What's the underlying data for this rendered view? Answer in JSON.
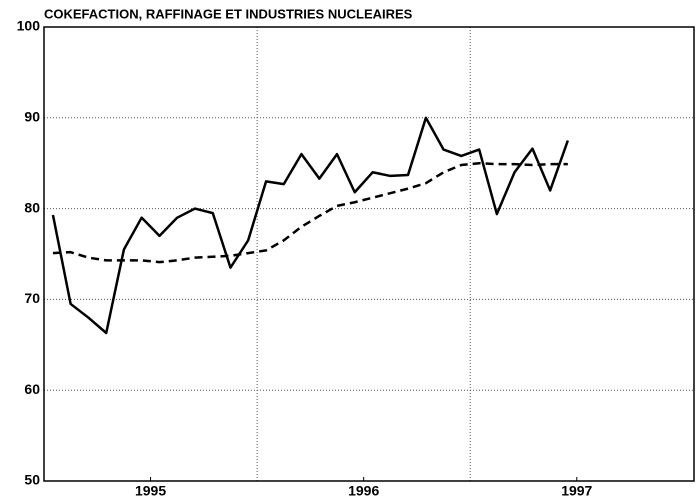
{
  "chart_data": {
    "type": "line",
    "title": "COKEFACTION, RAFFINAGE ET INDUSTRIES NUCLEAIRES",
    "x": [
      1995.042,
      1995.125,
      1995.208,
      1995.292,
      1995.375,
      1995.458,
      1995.542,
      1995.625,
      1995.708,
      1995.792,
      1995.875,
      1995.958,
      1996.042,
      1996.125,
      1996.208,
      1996.292,
      1996.375,
      1996.458,
      1996.542,
      1996.625,
      1996.708,
      1996.792,
      1996.875,
      1996.958,
      1997.042,
      1997.125,
      1997.208,
      1997.292,
      1997.375,
      1997.458
    ],
    "series": [
      {
        "name": null,
        "color": "#000000",
        "dashed": false,
        "values": [
          79.3,
          69.5,
          68,
          66.3,
          75.5,
          79,
          77,
          79,
          80,
          79.5,
          73.5,
          76.5,
          83,
          82.7,
          86,
          83.3,
          86,
          81.8,
          84,
          83.6,
          83.7,
          90,
          86.5,
          85.8,
          86.5,
          79.4,
          84,
          86.6,
          82,
          87.5
        ]
      },
      {
        "name": null,
        "color": "#000000",
        "dashed": true,
        "values": [
          75.1,
          75.2,
          74.6,
          74.3,
          74.3,
          74.3,
          74.1,
          74.3,
          74.6,
          74.7,
          74.8,
          75.1,
          75.4,
          76.5,
          78,
          79.2,
          80.3,
          80.7,
          81.2,
          81.7,
          82.2,
          82.8,
          84,
          84.8,
          85,
          84.9,
          84.9,
          84.8,
          84.9,
          84.9
        ]
      }
    ],
    "xlim": [
      1995,
      1998.05
    ],
    "xticks": [
      {
        "value": 1995.5,
        "label": "1995"
      },
      {
        "value": 1996.5,
        "label": "1996"
      },
      {
        "value": 1997.5,
        "label": "1997"
      }
    ],
    "xgrid": [
      1996,
      1997
    ],
    "ylim": [
      50,
      100
    ],
    "yticks": [
      50,
      60,
      70,
      80,
      90,
      100
    ],
    "grid": true
  }
}
